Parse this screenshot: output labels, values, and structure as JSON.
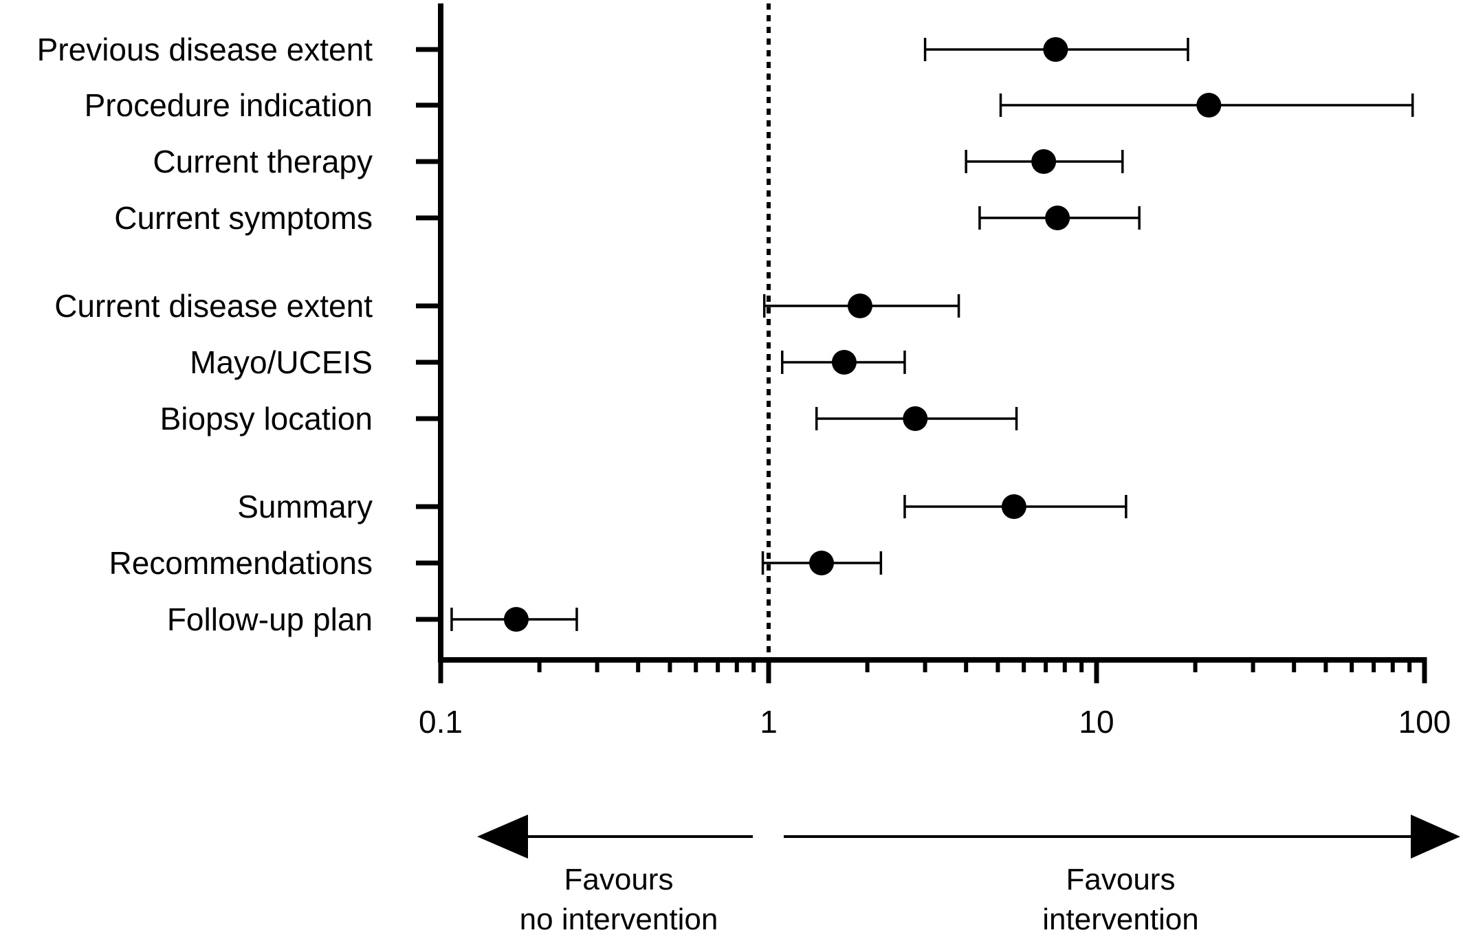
{
  "chart_data": {
    "type": "forest",
    "x_scale": "log",
    "xlim": [
      0.1,
      100
    ],
    "x_ticks": [
      "0.1",
      "1",
      "10",
      "100"
    ],
    "reference_line": 1,
    "grid": false,
    "rows": [
      {
        "label": "Previous disease extent",
        "estimate": 7.5,
        "ci_low": 3.0,
        "ci_high": 19.0
      },
      {
        "label": "Procedure indication",
        "estimate": 22.0,
        "ci_low": 5.1,
        "ci_high": 92.0
      },
      {
        "label": "Current therapy",
        "estimate": 6.9,
        "ci_low": 4.0,
        "ci_high": 12.0
      },
      {
        "label": "Current symptoms",
        "estimate": 7.6,
        "ci_low": 4.4,
        "ci_high": 13.5
      },
      {
        "label": "Current disease extent",
        "estimate": 1.9,
        "ci_low": 0.97,
        "ci_high": 3.8
      },
      {
        "label": "Mayo/UCEIS",
        "estimate": 1.7,
        "ci_low": 1.1,
        "ci_high": 2.6
      },
      {
        "label": "Biopsy location",
        "estimate": 2.8,
        "ci_low": 1.4,
        "ci_high": 5.7
      },
      {
        "label": "Summary",
        "estimate": 5.6,
        "ci_low": 2.6,
        "ci_high": 12.3
      },
      {
        "label": "Recommendations",
        "estimate": 1.45,
        "ci_low": 0.96,
        "ci_high": 2.2
      },
      {
        "label": "Follow-up plan",
        "estimate": 0.17,
        "ci_low": 0.108,
        "ci_high": 0.26
      }
    ],
    "annotations": {
      "left_arrow_text_line1": "Favours",
      "left_arrow_text_line2": "no intervention",
      "right_arrow_text_line1": "Favours",
      "right_arrow_text_line2": "intervention"
    }
  }
}
